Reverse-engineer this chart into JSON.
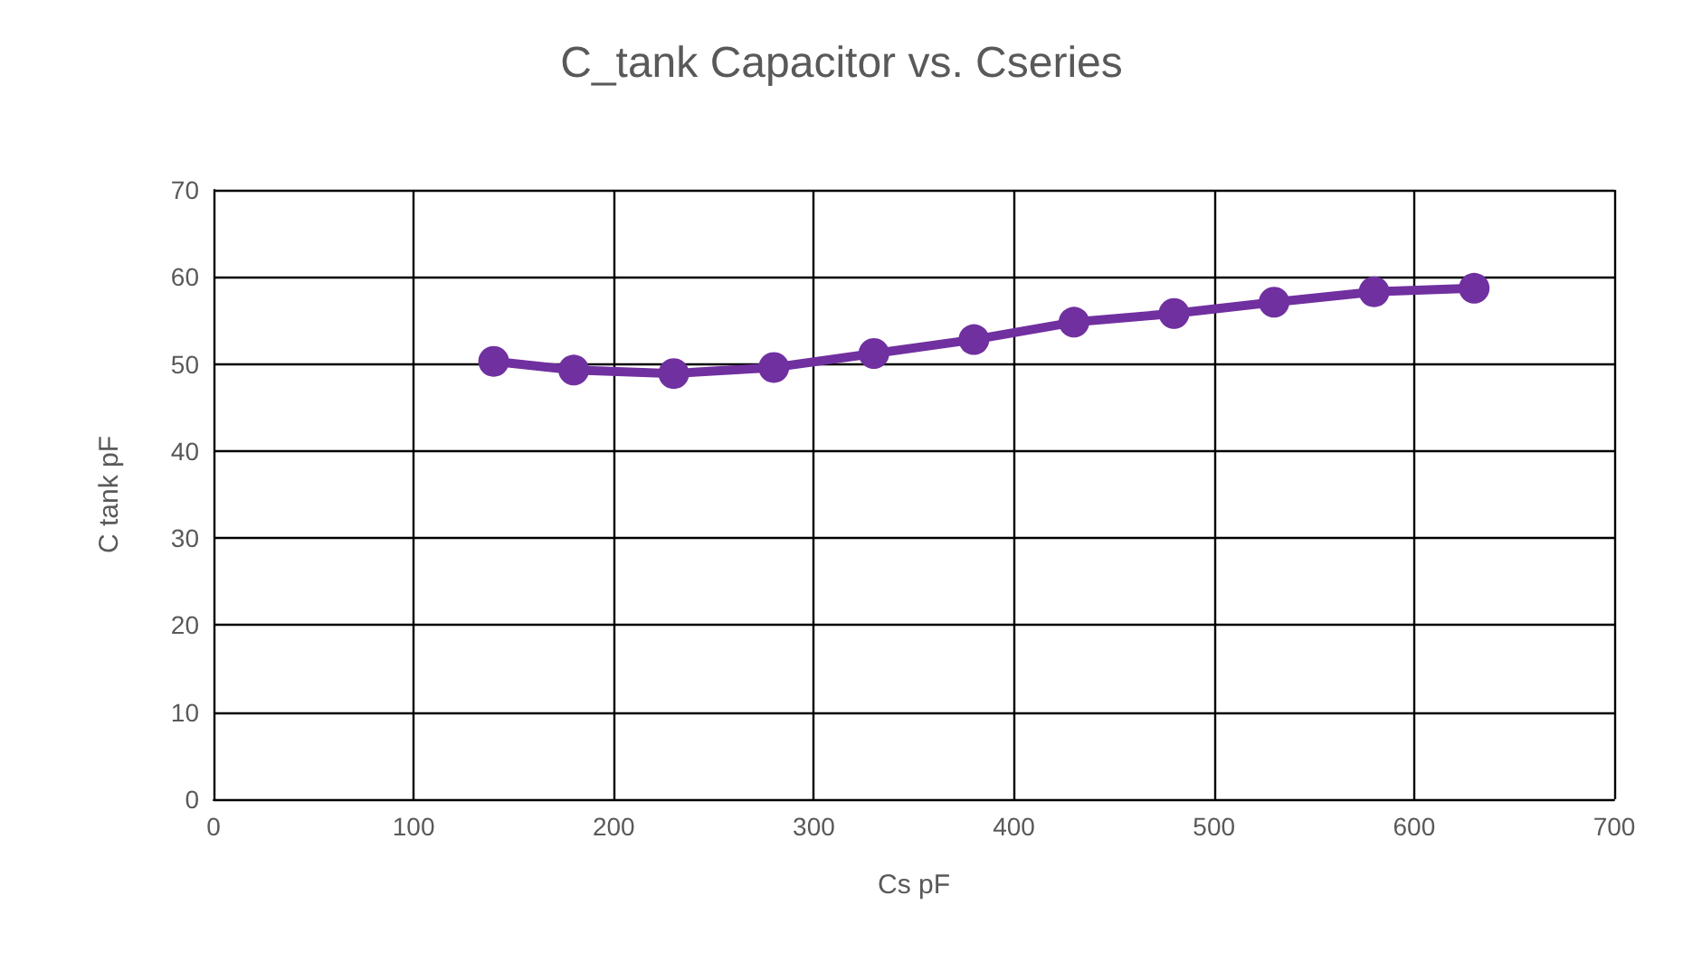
{
  "chart_data": {
    "type": "line",
    "title": "C_tank Capacitor vs. Cseries",
    "xlabel": "Cs pF",
    "ylabel": "C tank pF",
    "x": [
      140,
      180,
      230,
      280,
      330,
      380,
      430,
      480,
      530,
      580,
      630
    ],
    "series": [
      {
        "color": "#7030a0",
        "values": [
          50.3,
          49.3,
          48.9,
          49.6,
          51.2,
          52.8,
          54.8,
          55.8,
          57.1,
          58.3,
          58.7
        ]
      }
    ],
    "xlim": [
      0,
      700
    ],
    "xticks": [
      0,
      100,
      200,
      300,
      400,
      500,
      600,
      700
    ],
    "ylim": [
      0,
      70
    ],
    "yticks": [
      0,
      10,
      20,
      30,
      40,
      50,
      60,
      70
    ],
    "grid": true,
    "marker": "circle",
    "line_style": "solid"
  }
}
